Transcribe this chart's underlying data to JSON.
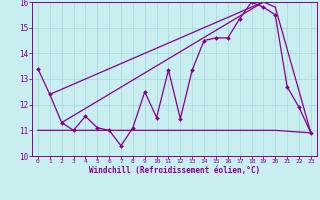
{
  "xlabel": "Windchill (Refroidissement éolien,°C)",
  "bg_color": "#c8eef0",
  "line_color": "#880088",
  "grid_color": "#aadddd",
  "xlim": [
    -0.5,
    23.5
  ],
  "ylim": [
    10,
    16
  ],
  "xticks": [
    0,
    1,
    2,
    3,
    4,
    5,
    6,
    7,
    8,
    9,
    10,
    11,
    12,
    13,
    14,
    15,
    16,
    17,
    18,
    19,
    20,
    21,
    22,
    23
  ],
  "yticks": [
    10,
    11,
    12,
    13,
    14,
    15,
    16
  ],
  "line1_x": [
    0,
    1,
    2,
    3,
    4,
    5,
    6,
    7,
    8,
    9,
    10,
    11,
    12,
    13,
    14,
    15,
    16,
    17,
    18,
    19,
    20,
    21,
    22,
    23
  ],
  "line1_y": [
    13.4,
    12.4,
    11.3,
    11.0,
    11.55,
    11.1,
    11.0,
    10.4,
    11.1,
    12.5,
    11.5,
    13.35,
    11.45,
    13.35,
    14.5,
    14.6,
    14.6,
    15.35,
    16.0,
    15.8,
    15.5,
    12.7,
    11.9,
    10.9
  ],
  "line2_x": [
    0,
    20,
    23
  ],
  "line2_y": [
    11.0,
    11.0,
    10.9
  ],
  "line3_x": [
    1,
    19
  ],
  "line3_y": [
    12.4,
    16.0
  ],
  "line4_x": [
    2,
    19,
    20,
    23
  ],
  "line4_y": [
    11.3,
    16.0,
    15.8,
    10.9
  ]
}
